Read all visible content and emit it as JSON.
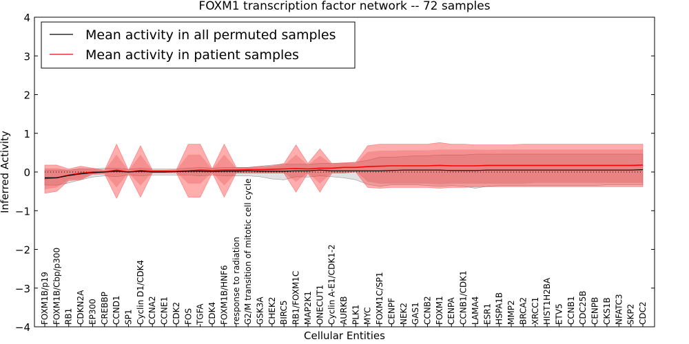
{
  "chart_data": {
    "type": "line",
    "title": "FOXM1 transcription factor network -- 72 samples",
    "xlabel": "Cellular Entities",
    "ylabel": "Inferred Activity",
    "ylim": [
      -4,
      4
    ],
    "yticks": [
      -4,
      -3,
      -2,
      -1,
      0,
      1,
      2,
      3,
      4
    ],
    "ytick_labels": [
      "−4",
      "−3",
      "−2",
      "−1",
      "0",
      "1",
      "2",
      "3",
      "4"
    ],
    "legend_position": "top-left",
    "categories": [
      "FOXM1B/p19",
      "FOXM1B/Cbp/p300",
      "RB1",
      "CDKN2A",
      "EP300",
      "CREBBP",
      "CCND1",
      "SP1",
      "Cyclin D1/CDK4",
      "CCNA2",
      "CCNE1",
      "CDK2",
      "FOS",
      "TGFA",
      "CDK4",
      "FOXM1B/HNF6",
      "response to radiation",
      "G2/M transition of mitotic cell cycle",
      "GSK3A",
      "CHEK2",
      "BIRC5",
      "RB1/FOXM1C",
      "MAP2K1",
      "ONECUT1",
      "Cyclin A-E1/CDK1-2",
      "AURKB",
      "PLK1",
      "MYC",
      "FOXM1C/SP1",
      "CENPF",
      "NEK2",
      "GAS1",
      "CCNB2",
      "FOXM1",
      "CENPA",
      "CCNB1/CDK1",
      "LAMA4",
      "ESR1",
      "HSPA1B",
      "MMP2",
      "BRCA2",
      "XRCC1",
      "HIST1H2BA",
      "ETV5",
      "CCNB1",
      "CDC25B",
      "CENPB",
      "CKS1B",
      "NFATC3",
      "SKP2",
      "CDC2"
    ],
    "series": [
      {
        "name": "Mean activity in all permuted samples",
        "color": "#000000",
        "values": [
          -0.15,
          -0.15,
          -0.09,
          -0.05,
          -0.02,
          0.0,
          0.02,
          0.0,
          0.02,
          0.0,
          0.0,
          0.01,
          0.02,
          0.02,
          0.01,
          0.02,
          0.02,
          0.03,
          0.02,
          0.02,
          0.02,
          0.03,
          0.03,
          0.05,
          0.03,
          0.03,
          0.03,
          0.03,
          0.03,
          0.04,
          0.05,
          0.05,
          0.05,
          0.05,
          0.04,
          0.04,
          0.04,
          0.05,
          0.05,
          0.05,
          0.05,
          0.05,
          0.05,
          0.05,
          0.05,
          0.05,
          0.05,
          0.05,
          0.05,
          0.05,
          0.06
        ],
        "band_lower": [
          -0.34,
          -0.34,
          -0.28,
          -0.2,
          -0.13,
          -0.1,
          -0.12,
          -0.08,
          -0.1,
          -0.08,
          -0.08,
          -0.08,
          -0.08,
          -0.1,
          -0.08,
          -0.1,
          -0.1,
          -0.1,
          -0.12,
          -0.18,
          -0.2,
          -0.12,
          -0.13,
          -0.1,
          -0.12,
          -0.15,
          -0.2,
          -0.32,
          -0.37,
          -0.33,
          -0.33,
          -0.33,
          -0.35,
          -0.37,
          -0.35,
          -0.37,
          -0.42,
          -0.37,
          -0.35,
          -0.35,
          -0.35,
          -0.35,
          -0.35,
          -0.35,
          -0.35,
          -0.35,
          -0.35,
          -0.33,
          -0.33,
          -0.33,
          -0.33
        ],
        "band_upper": [
          0.05,
          0.05,
          0.05,
          0.08,
          0.08,
          0.1,
          0.1,
          0.07,
          0.1,
          0.08,
          0.08,
          0.08,
          0.1,
          0.12,
          0.1,
          0.12,
          0.12,
          0.12,
          0.15,
          0.18,
          0.2,
          0.2,
          0.2,
          0.22,
          0.22,
          0.22,
          0.25,
          0.3,
          0.38,
          0.38,
          0.4,
          0.42,
          0.42,
          0.44,
          0.44,
          0.44,
          0.46,
          0.46,
          0.46,
          0.46,
          0.46,
          0.46,
          0.46,
          0.46,
          0.46,
          0.46,
          0.46,
          0.46,
          0.46,
          0.46,
          0.46
        ]
      },
      {
        "name": "Mean activity in patient samples",
        "color": "#ff0000",
        "values": [
          -0.17,
          -0.15,
          -0.08,
          -0.03,
          0.0,
          0.0,
          0.05,
          0.0,
          0.04,
          0.02,
          0.02,
          0.02,
          0.03,
          0.05,
          0.04,
          0.05,
          0.05,
          0.06,
          0.06,
          0.07,
          0.08,
          0.09,
          0.08,
          0.1,
          0.1,
          0.12,
          0.12,
          0.14,
          0.15,
          0.16,
          0.16,
          0.16,
          0.16,
          0.17,
          0.16,
          0.16,
          0.16,
          0.17,
          0.17,
          0.17,
          0.17,
          0.17,
          0.17,
          0.17,
          0.17,
          0.17,
          0.17,
          0.17,
          0.17,
          0.17,
          0.18
        ],
        "band_inner_lower": [
          -0.45,
          -0.4,
          -0.2,
          -0.18,
          -0.05,
          -0.03,
          -0.4,
          -0.02,
          -0.35,
          -0.01,
          -0.01,
          -0.01,
          -0.3,
          -0.3,
          -0.01,
          -0.35,
          -0.02,
          -0.02,
          -0.02,
          -0.02,
          -0.02,
          -0.25,
          -0.02,
          -0.3,
          -0.02,
          -0.02,
          0.02,
          -0.25,
          -0.3,
          -0.3,
          -0.3,
          -0.3,
          -0.3,
          -0.32,
          -0.3,
          -0.3,
          -0.3,
          -0.3,
          -0.3,
          -0.3,
          -0.3,
          -0.28,
          -0.28,
          -0.28,
          -0.28,
          -0.28,
          -0.28,
          -0.28,
          -0.28,
          -0.28,
          -0.28
        ],
        "band_inner_upper": [
          0.1,
          0.1,
          0.05,
          0.1,
          0.08,
          0.04,
          0.45,
          0.03,
          0.45,
          0.04,
          0.04,
          0.05,
          0.45,
          0.45,
          0.07,
          0.45,
          0.1,
          0.11,
          0.12,
          0.14,
          0.18,
          0.45,
          0.18,
          0.42,
          0.2,
          0.22,
          0.22,
          0.52,
          0.55,
          0.55,
          0.56,
          0.56,
          0.56,
          0.58,
          0.58,
          0.58,
          0.58,
          0.57,
          0.58,
          0.58,
          0.58,
          0.58,
          0.58,
          0.58,
          0.58,
          0.58,
          0.58,
          0.58,
          0.58,
          0.58,
          0.58
        ],
        "band_outer_lower": [
          -0.55,
          -0.5,
          -0.22,
          -0.2,
          -0.06,
          -0.05,
          -0.68,
          -0.04,
          -0.65,
          -0.02,
          -0.02,
          -0.02,
          -0.65,
          -0.65,
          -0.02,
          -0.65,
          -0.03,
          -0.03,
          -0.03,
          -0.03,
          -0.03,
          -0.52,
          -0.03,
          -0.52,
          -0.03,
          -0.03,
          0.0,
          -0.4,
          -0.42,
          -0.4,
          -0.4,
          -0.4,
          -0.4,
          -0.42,
          -0.4,
          -0.4,
          -0.38,
          -0.38,
          -0.38,
          -0.38,
          -0.38,
          -0.38,
          -0.38,
          -0.38,
          -0.38,
          -0.38,
          -0.38,
          -0.38,
          -0.38,
          -0.38,
          -0.38
        ],
        "band_outer_upper": [
          0.18,
          0.18,
          0.08,
          0.15,
          0.1,
          0.05,
          0.72,
          0.04,
          0.68,
          0.05,
          0.05,
          0.06,
          0.72,
          0.72,
          0.08,
          0.72,
          0.12,
          0.12,
          0.14,
          0.16,
          0.22,
          0.7,
          0.22,
          0.6,
          0.22,
          0.24,
          0.25,
          0.68,
          0.72,
          0.72,
          0.72,
          0.72,
          0.72,
          0.76,
          0.72,
          0.72,
          0.7,
          0.7,
          0.7,
          0.7,
          0.72,
          0.72,
          0.72,
          0.72,
          0.72,
          0.72,
          0.72,
          0.72,
          0.72,
          0.72,
          0.72
        ]
      }
    ]
  }
}
